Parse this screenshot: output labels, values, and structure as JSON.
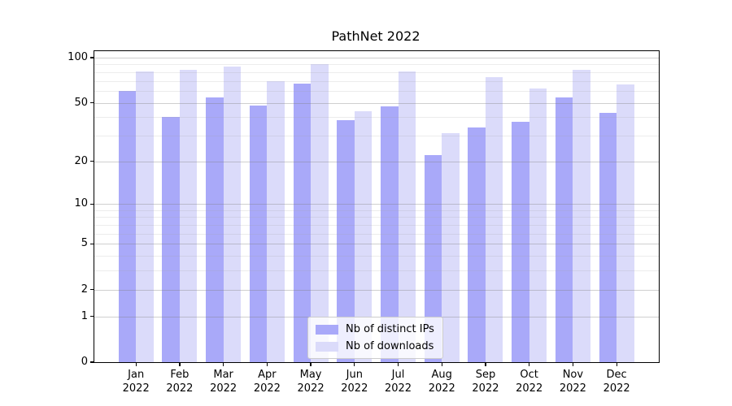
{
  "title": "PathNet 2022",
  "legend": {
    "items": [
      {
        "label": "Nb of distinct IPs",
        "color": "#a9a9f9"
      },
      {
        "label": "Nb of downloads",
        "color": "#dbdbfa"
      }
    ]
  },
  "y_axis": {
    "tick_labels": [
      "100",
      "50",
      "20",
      "10",
      "5",
      "2",
      "1",
      "0"
    ]
  },
  "x_axis": {
    "months": [
      "Jan",
      "Feb",
      "Mar",
      "Apr",
      "May",
      "Jun",
      "Jul",
      "Aug",
      "Sep",
      "Oct",
      "Nov",
      "Dec"
    ],
    "year": "2022"
  },
  "chart_data": {
    "type": "bar",
    "title": "PathNet 2022",
    "xlabel": "",
    "ylabel": "",
    "categories": [
      "Jan 2022",
      "Feb 2022",
      "Mar 2022",
      "Apr 2022",
      "May 2022",
      "Jun 2022",
      "Jul 2022",
      "Aug 2022",
      "Sep 2022",
      "Oct 2022",
      "Nov 2022",
      "Dec 2022"
    ],
    "series": [
      {
        "name": "Nb of distinct IPs",
        "color": "#a9a9f9",
        "values": [
          60,
          40,
          54,
          48,
          67,
          38,
          47,
          22,
          34,
          37,
          54,
          43
        ]
      },
      {
        "name": "Nb of downloads",
        "color": "#dbdbfa",
        "values": [
          81,
          83,
          87,
          70,
          90,
          44,
          81,
          31,
          74,
          62,
          83,
          66
        ]
      }
    ],
    "yscale": "symlog",
    "yticks": [
      0,
      1,
      2,
      5,
      10,
      20,
      50,
      100
    ],
    "yticks_minor": [
      3,
      4,
      6,
      7,
      8,
      9,
      30,
      40,
      60,
      70,
      80,
      90
    ],
    "ylim": [
      0,
      110
    ],
    "grid": true,
    "legend_position": "lower center"
  }
}
